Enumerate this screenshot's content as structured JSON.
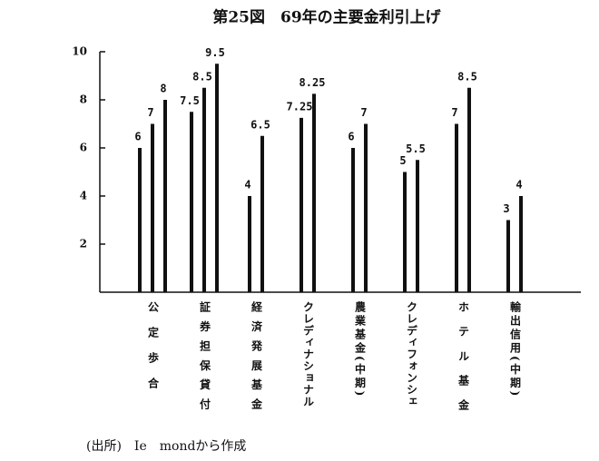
{
  "chart_data": {
    "type": "grouped-bar",
    "title": "第25図　69年の主要金利引上げ",
    "groups": [
      {
        "category": "公定歩合",
        "values": [
          6,
          7,
          8
        ]
      },
      {
        "category": "証券担保貸付",
        "values": [
          7.5,
          8.5,
          9.5
        ]
      },
      {
        "category": "経済発展基金",
        "values": [
          4,
          6.5
        ]
      },
      {
        "category": "クレディナショナル",
        "values": [
          7.25,
          8.25
        ]
      },
      {
        "category": "農業基金(中期)",
        "values": [
          6,
          7
        ]
      },
      {
        "category": "クレディフォンシェ",
        "values": [
          5,
          5.5
        ]
      },
      {
        "category": "ホテル基金",
        "values": [
          7,
          8.5
        ]
      },
      {
        "category": "輸出信用(中期)",
        "values": [
          3,
          4
        ]
      }
    ],
    "color": "#111111",
    "ylim": [
      0,
      10
    ],
    "yticks": [
      2,
      4,
      6,
      8,
      10
    ],
    "source": "(出所)　Ie　mondから作成"
  }
}
